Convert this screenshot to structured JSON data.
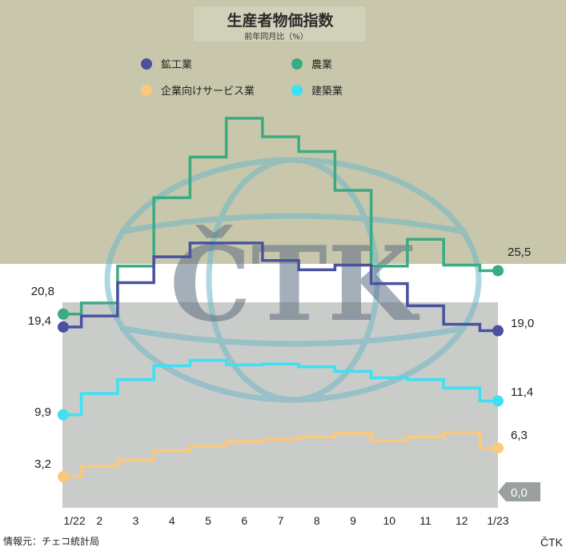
{
  "chart_data": {
    "type": "line",
    "title": "生産者物価指数",
    "subtitle": "前年同月比（%）",
    "categories": [
      "1/22",
      "2",
      "3",
      "4",
      "5",
      "6",
      "7",
      "8",
      "9",
      "10",
      "11",
      "12",
      "1/23"
    ],
    "ylim": [
      0,
      40
    ],
    "step": true,
    "legend_position": "top",
    "series": [
      {
        "name": "鉱工業",
        "color": "#4a52a0",
        "values": [
          19.4,
          20.6,
          24.2,
          27.0,
          28.5,
          28.5,
          26.6,
          25.6,
          26.1,
          24.1,
          21.7,
          19.7,
          19.0
        ]
      },
      {
        "name": "農業",
        "color": "#3aab82",
        "values": [
          20.8,
          22.0,
          26.0,
          33.4,
          37.8,
          42.0,
          40.0,
          38.4,
          34.2,
          26.0,
          28.9,
          26.1,
          25.5
        ]
      },
      {
        "name": "企業向けサービス業",
        "color": "#fcc87a",
        "values": [
          3.2,
          4.3,
          5.0,
          6.0,
          6.5,
          7.0,
          7.2,
          7.5,
          7.9,
          7.1,
          7.5,
          8.0,
          6.3
        ]
      },
      {
        "name": "建築業",
        "color": "#3de0f5",
        "values": [
          9.9,
          12.2,
          13.7,
          15.2,
          15.8,
          15.3,
          15.4,
          15.1,
          14.6,
          13.9,
          13.7,
          12.8,
          11.4
        ]
      }
    ],
    "end_labels": {
      "start": {
        "鉱工業": "19,4",
        "農業": "20,8",
        "企業向けサービス業": "3,2",
        "建築業": "9,9"
      },
      "end": {
        "鉱工業": "19,0",
        "農業": "25,5",
        "企業向けサービス業": "6,3",
        "建築業": "11,4"
      },
      "zero": "0,0"
    },
    "grid": false
  },
  "source": "情報元：チェコ統計局",
  "brand": "ČTK",
  "watermark_text": "ČTK",
  "colors": {
    "background_top": "#c8c7ab",
    "plot_bg": "#c9ccc9",
    "zero_tag": "#9aa09e"
  }
}
